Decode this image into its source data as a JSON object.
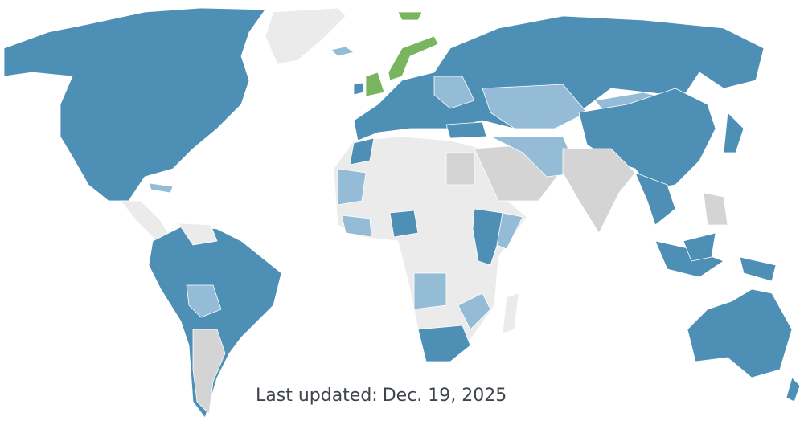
{
  "footer": {
    "label": "Last updated:",
    "date": "Dec. 19, 2025"
  },
  "map": {
    "type": "world-choropleth",
    "palette": {
      "dark_blue": "#4e8fb6",
      "light_blue": "#95bcd6",
      "green": "#78b55e",
      "gray": "#d4d4d4",
      "light_gray": "#ebebeb",
      "border": "#ffffff"
    }
  }
}
